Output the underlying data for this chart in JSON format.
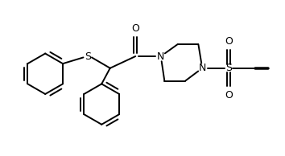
{
  "bg_color": "#ffffff",
  "line_color": "#000000",
  "line_width": 1.4,
  "font_size": 8.5,
  "figsize": [
    3.54,
    1.94
  ],
  "dpi": 100,
  "xlim": [
    0,
    10
  ],
  "ylim": [
    0,
    5.5
  ]
}
